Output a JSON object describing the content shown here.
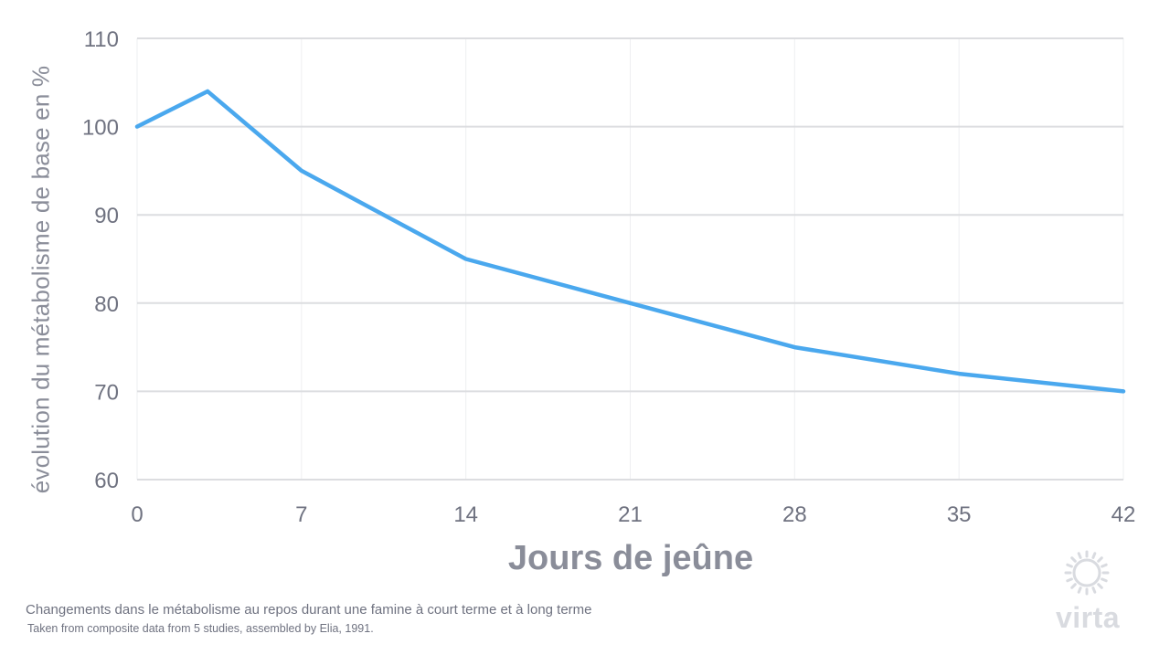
{
  "chart_data": {
    "type": "line",
    "xlabel": "Jours de jeûne",
    "ylabel": "évolution du métabolisme de base en %",
    "x_ticks": [
      0,
      7,
      14,
      21,
      28,
      35,
      42
    ],
    "y_ticks": [
      60,
      70,
      80,
      90,
      100,
      110
    ],
    "xlim": [
      0,
      42
    ],
    "ylim": [
      60,
      110
    ],
    "grid": true,
    "series": [
      {
        "x": [
          0,
          3,
          7,
          14,
          21,
          28,
          35,
          42
        ],
        "y": [
          100,
          104,
          95,
          85,
          80,
          75,
          72,
          70
        ]
      }
    ],
    "line_color": "#4aa8ee",
    "grid_color": "#dcdde0",
    "tick_color": "#6f7280"
  },
  "caption": {
    "main": "Changements dans le métabolisme au repos durant une famine à court terme et à long terme",
    "source": "Taken from composite data from 5 studies, assembled by Elia, 1991."
  },
  "logo": {
    "text": "virta",
    "icon": "sun-gear-icon"
  }
}
